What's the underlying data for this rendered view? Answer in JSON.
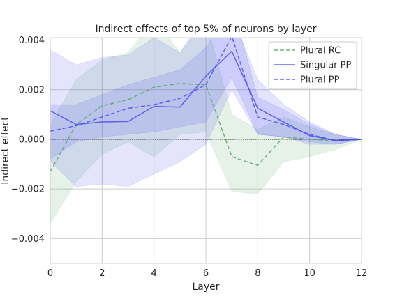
{
  "chart_data": {
    "type": "line",
    "title": "Indirect effects of top 5% of neurons by layer",
    "xlabel": "Layer",
    "ylabel": "Indirect effect",
    "xlim": [
      0,
      12
    ],
    "ylim": [
      -0.005,
      0.0041
    ],
    "xticks": [
      0,
      2,
      4,
      6,
      8,
      10,
      12
    ],
    "yticks": [
      -0.004,
      -0.002,
      0.0,
      0.002,
      0.004
    ],
    "xtick_labels": [
      "0",
      "2",
      "4",
      "6",
      "8",
      "10",
      "12"
    ],
    "ytick_labels": [
      "−0.004",
      "−0.002",
      "0.000",
      "0.002",
      "0.004"
    ],
    "grid": true,
    "zero_line": true,
    "legend_position": "top-right",
    "x": [
      0,
      1,
      2,
      3,
      4,
      5,
      6,
      7,
      8,
      9,
      10,
      11,
      12
    ],
    "series": [
      {
        "name": "Plural RC",
        "color": "#55a868",
        "linestyle": "dashed",
        "values": [
          -0.0013,
          0.0006,
          0.00135,
          0.0016,
          0.0021,
          0.00225,
          0.0022,
          -0.0007,
          -0.00105,
          0.0001,
          0.0,
          -5e-05,
          0.0
        ],
        "lower": [
          -0.0034,
          -0.0017,
          -0.0006,
          -0.0001,
          -0.0007,
          0.0002,
          0.0003,
          -0.0021,
          -0.0022,
          -0.0009,
          -0.0007,
          -0.0004,
          0.0
        ],
        "upper": [
          0.0006,
          0.0024,
          0.0032,
          0.0035,
          0.0048,
          0.0035,
          0.0048,
          0.001,
          0.0004,
          0.0009,
          0.0005,
          0.0002,
          0.0
        ]
      },
      {
        "name": "Singular PP",
        "color": "#4c4cf0",
        "linestyle": "solid",
        "values": [
          0.00115,
          0.0006,
          0.0007,
          0.00072,
          0.00133,
          0.0013,
          0.00255,
          0.00355,
          0.00125,
          0.0007,
          0.00015,
          -5e-05,
          0.0
        ],
        "lower": [
          -0.0009,
          -0.0019,
          -0.0018,
          -0.0019,
          -0.0014,
          -0.0009,
          -0.0002,
          0.002,
          0.0002,
          0.0001,
          -0.0002,
          -0.0002,
          0.0
        ],
        "upper": [
          0.0036,
          0.003,
          0.0033,
          0.0034,
          0.0041,
          0.0035,
          0.005,
          0.005,
          0.0024,
          0.0014,
          0.0007,
          0.0002,
          0.0
        ]
      },
      {
        "name": "Plural PP",
        "color": "#4c4cf0",
        "linestyle": "dashed",
        "values": [
          0.00033,
          0.00055,
          0.0009,
          0.00125,
          0.0014,
          0.00165,
          0.0022,
          0.00415,
          0.0009,
          0.0006,
          0.0002,
          -5e-05,
          0.0
        ],
        "lower": [
          -0.0008,
          -0.0001,
          0.0001,
          0.0002,
          0.0003,
          0.0005,
          0.0007,
          0.0025,
          0.0002,
          0.0001,
          -0.0001,
          -0.0002,
          0.0
        ],
        "upper": [
          0.0014,
          0.0014,
          0.0018,
          0.0022,
          0.0025,
          0.0028,
          0.0037,
          0.0055,
          0.0017,
          0.0012,
          0.0006,
          0.0002,
          0.0
        ]
      }
    ]
  }
}
